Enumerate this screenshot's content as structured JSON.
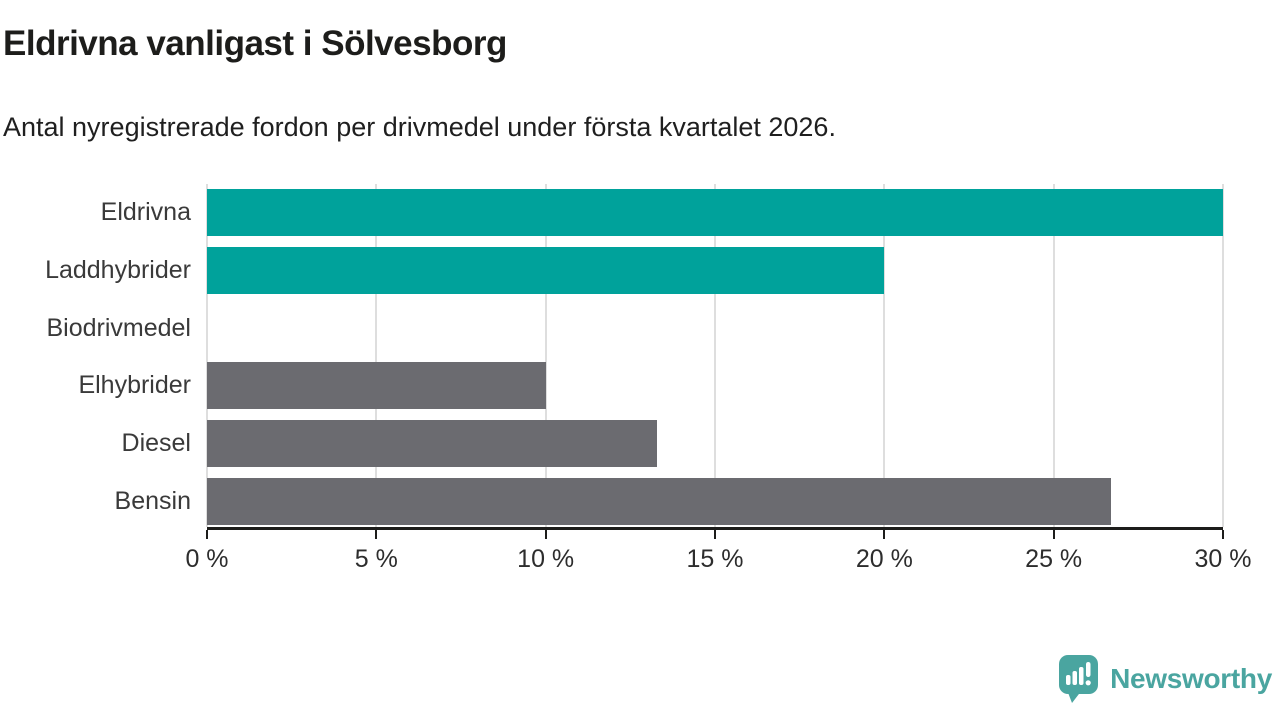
{
  "header": {
    "title": "Eldrivna vanligast i Sölvesborg",
    "subtitle": "Antal nyregistrerade fordon per drivmedel under första kvartalet 2026."
  },
  "chart_data": {
    "type": "bar",
    "orientation": "horizontal",
    "title": "Eldrivna vanligast i Sölvesborg",
    "subtitle": "Antal nyregistrerade fordon per drivmedel under första kvartalet 2026.",
    "categories": [
      "Eldrivna",
      "Laddhybrider",
      "Biodrivmedel",
      "Elhybrider",
      "Diesel",
      "Bensin"
    ],
    "values": [
      30,
      20,
      0,
      10,
      13.3,
      26.7
    ],
    "colors": [
      "#00a29b",
      "#00a29b",
      "#00a29b",
      "#6b6b70",
      "#6b6b70",
      "#6b6b70"
    ],
    "xlabel": "",
    "ylabel": "",
    "xlim": [
      0,
      30
    ],
    "xticks": [
      0,
      5,
      10,
      15,
      20,
      25,
      30
    ],
    "xtick_labels": [
      "0 %",
      "5 %",
      "10 %",
      "15 %",
      "20 %",
      "25 %",
      "30 %"
    ],
    "unit": "%",
    "grid": "vertical-on",
    "legend": "none",
    "accent_color": "#00a29b",
    "muted_color": "#6b6b70"
  },
  "logo": {
    "icon": "newsworthy-speech-bubble-chart-icon",
    "text": "Newsworthy",
    "color": "#4aa5a0"
  }
}
